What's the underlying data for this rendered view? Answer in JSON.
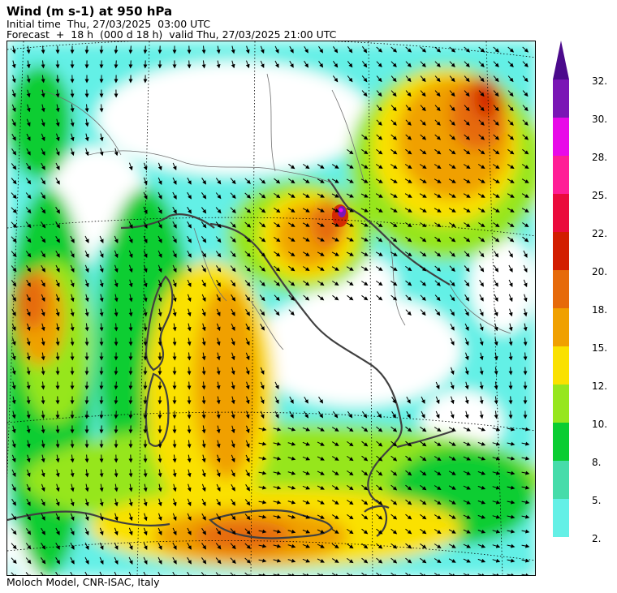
{
  "header": {
    "title": "Wind (m s-1) at 950 hPa",
    "initial_time": "Initial time  Thu, 27/03/2025  03:00 UTC",
    "forecast": "Forecast  +  18 h  (000 d 18 h)  valid Thu, 27/03/2025 21:00 UTC"
  },
  "footer": "Moloch Model, CNR-ISAC, Italy",
  "legend": {
    "labels": [
      "32.",
      "30.",
      "28.",
      "25.",
      "22.",
      "20.",
      "18.",
      "15.",
      "12.",
      "10.",
      "8.",
      "5.",
      "2."
    ],
    "colors": [
      "#7a16b5",
      "#e80ae8",
      "#ff1e96",
      "#ea0b3c",
      "#d21e00",
      "#e66a0a",
      "#f0a000",
      "#fae100",
      "#96e61e",
      "#0acd32",
      "#46dcaa",
      "#64f0e6"
    ],
    "top_color": "#4b0a8c"
  },
  "map": {
    "sea_color": "#ffffff",
    "coast_color": "#404040",
    "border_color": "#606060",
    "arrow_color": "#000000"
  }
}
